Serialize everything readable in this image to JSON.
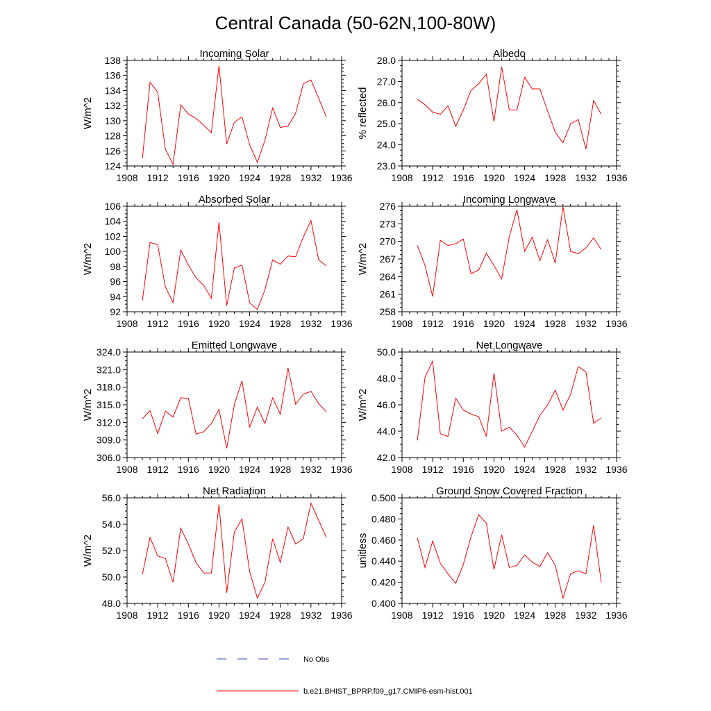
{
  "title": "Central Canada (50-62N,100-80W)",
  "legend": {
    "obs_label": "No Obs",
    "obs_color": "#3344cc",
    "model_label": "b.e21.BHIST_BPRP.f09_g17.CMIP6-esm-hist.001",
    "model_color": "#ff0000"
  },
  "chart_data": [
    {
      "type": "line",
      "title": "Incoming Solar",
      "ylabel": "W/m^2",
      "xlim": [
        1908,
        1936
      ],
      "xticks": [
        "1908",
        "1912",
        "1916",
        "1920",
        "1924",
        "1928",
        "1932",
        "1936"
      ],
      "ylim": [
        124,
        138
      ],
      "yticks": [
        "124",
        "126",
        "128",
        "130",
        "132",
        "134",
        "136",
        "138"
      ],
      "x": [
        1910,
        1911,
        1912,
        1913,
        1914,
        1915,
        1916,
        1917,
        1918,
        1919,
        1920,
        1921,
        1922,
        1923,
        1924,
        1925,
        1926,
        1927,
        1928,
        1929,
        1930,
        1931,
        1932,
        1933,
        1934
      ],
      "series": [
        {
          "name": "b.e21.BHIST_BPRP.f09_g17.CMIP6-esm-hist.001",
          "values": [
            125.0,
            135.1,
            133.8,
            126.2,
            124.2,
            132.1,
            130.9,
            130.3,
            129.4,
            128.4,
            137.3,
            126.9,
            129.8,
            130.5,
            126.8,
            124.5,
            127.4,
            131.7,
            129.1,
            129.3,
            131.0,
            134.9,
            135.4,
            133.0,
            130.5
          ]
        }
      ]
    },
    {
      "type": "line",
      "title": "Albedo",
      "ylabel": "% reflected",
      "xlim": [
        1908,
        1936
      ],
      "xticks": [
        "1908",
        "1912",
        "1916",
        "1920",
        "1924",
        "1928",
        "1932",
        "1936"
      ],
      "ylim": [
        23.0,
        28.0
      ],
      "yticks": [
        "23.0",
        "24.0",
        "25.0",
        "26.0",
        "27.0",
        "28.0"
      ],
      "x": [
        1910,
        1911,
        1912,
        1913,
        1914,
        1915,
        1916,
        1917,
        1918,
        1919,
        1920,
        1921,
        1922,
        1923,
        1924,
        1925,
        1926,
        1927,
        1928,
        1929,
        1930,
        1931,
        1932,
        1933,
        1934
      ],
      "series": [
        {
          "name": "b.e21.BHIST_BPRP.f09_g17.CMIP6-esm-hist.001",
          "values": [
            26.15,
            25.9,
            25.55,
            25.45,
            25.85,
            24.88,
            25.65,
            26.58,
            26.9,
            27.35,
            25.1,
            27.7,
            25.65,
            25.65,
            27.2,
            26.65,
            26.65,
            25.6,
            24.6,
            24.1,
            25.0,
            25.2,
            23.8,
            26.1,
            25.45
          ]
        }
      ]
    },
    {
      "type": "line",
      "title": "Absorbed Solar",
      "ylabel": "W/m^2",
      "xlim": [
        1908,
        1936
      ],
      "xticks": [
        "1908",
        "1912",
        "1916",
        "1920",
        "1924",
        "1928",
        "1932",
        "1936"
      ],
      "ylim": [
        92,
        106
      ],
      "yticks": [
        "92",
        "94",
        "96",
        "98",
        "100",
        "102",
        "104",
        "106"
      ],
      "x": [
        1910,
        1911,
        1912,
        1913,
        1914,
        1915,
        1916,
        1917,
        1918,
        1919,
        1920,
        1921,
        1922,
        1923,
        1924,
        1925,
        1926,
        1927,
        1928,
        1929,
        1930,
        1931,
        1932,
        1933,
        1934
      ],
      "series": [
        {
          "name": "b.e21.BHIST_BPRP.f09_g17.CMIP6-esm-hist.001",
          "values": [
            93.5,
            101.2,
            100.9,
            95.3,
            93.2,
            100.2,
            98.2,
            96.5,
            95.5,
            93.8,
            103.9,
            92.8,
            97.8,
            98.2,
            93.2,
            92.3,
            94.9,
            98.9,
            98.3,
            99.4,
            99.3,
            101.9,
            104.1,
            98.9,
            98.1
          ]
        }
      ]
    },
    {
      "type": "line",
      "title": "Incoming Longwave",
      "ylabel": "W/m^2",
      "xlim": [
        1908,
        1936
      ],
      "xticks": [
        "1908",
        "1912",
        "1916",
        "1920",
        "1924",
        "1928",
        "1932",
        "1936"
      ],
      "ylim": [
        258,
        276
      ],
      "yticks": [
        "258",
        "261",
        "264",
        "267",
        "270",
        "273",
        "276"
      ],
      "x": [
        1910,
        1911,
        1912,
        1913,
        1914,
        1915,
        1916,
        1917,
        1918,
        1919,
        1920,
        1921,
        1922,
        1923,
        1924,
        1925,
        1926,
        1927,
        1928,
        1929,
        1930,
        1931,
        1932,
        1933,
        1934
      ],
      "series": [
        {
          "name": "b.e21.BHIST_BPRP.f09_g17.CMIP6-esm-hist.001",
          "values": [
            269.3,
            265.9,
            260.6,
            270.2,
            269.3,
            269.6,
            270.4,
            264.5,
            265.1,
            268.0,
            265.9,
            263.6,
            270.8,
            275.4,
            268.3,
            270.7,
            266.7,
            270.3,
            266.3,
            275.9,
            268.3,
            267.9,
            268.9,
            270.6,
            268.6
          ]
        }
      ]
    },
    {
      "type": "line",
      "title": "Emitted Longwave",
      "ylabel": "W/m^2",
      "xlim": [
        1908,
        1936
      ],
      "xticks": [
        "1908",
        "1912",
        "1916",
        "1920",
        "1924",
        "1928",
        "1932",
        "1936"
      ],
      "ylim": [
        306.0,
        324.0
      ],
      "yticks": [
        "306.0",
        "309.0",
        "312.0",
        "315.0",
        "318.0",
        "321.0",
        "324.0"
      ],
      "x": [
        1910,
        1911,
        1912,
        1913,
        1914,
        1915,
        1916,
        1917,
        1918,
        1919,
        1920,
        1921,
        1922,
        1923,
        1924,
        1925,
        1926,
        1927,
        1928,
        1929,
        1930,
        1931,
        1932,
        1933,
        1934
      ],
      "series": [
        {
          "name": "b.e21.BHIST_BPRP.f09_g17.CMIP6-esm-hist.001",
          "values": [
            312.6,
            314.0,
            310.1,
            313.9,
            312.9,
            316.2,
            316.1,
            310.0,
            310.4,
            311.8,
            314.2,
            307.6,
            315.0,
            319.1,
            311.2,
            314.6,
            311.8,
            316.2,
            313.4,
            321.3,
            315.1,
            316.8,
            317.3,
            315.2,
            313.8
          ]
        }
      ]
    },
    {
      "type": "line",
      "title": "Net Longwave",
      "ylabel": "W/m^2",
      "xlim": [
        1908,
        1936
      ],
      "xticks": [
        "1908",
        "1912",
        "1916",
        "1920",
        "1924",
        "1928",
        "1932",
        "1936"
      ],
      "ylim": [
        42.0,
        50.0
      ],
      "yticks": [
        "42.0",
        "44.0",
        "46.0",
        "48.0",
        "50.0"
      ],
      "x": [
        1910,
        1911,
        1912,
        1913,
        1914,
        1915,
        1916,
        1917,
        1918,
        1919,
        1920,
        1921,
        1922,
        1923,
        1924,
        1925,
        1926,
        1927,
        1928,
        1929,
        1930,
        1931,
        1932,
        1933,
        1934
      ],
      "series": [
        {
          "name": "b.e21.BHIST_BPRP.f09_g17.CMIP6-esm-hist.001",
          "values": [
            43.3,
            48.1,
            49.3,
            43.8,
            43.6,
            46.5,
            45.6,
            45.3,
            45.1,
            43.6,
            48.4,
            44.0,
            44.3,
            43.7,
            42.8,
            44.0,
            45.2,
            46.0,
            47.1,
            45.6,
            46.8,
            48.9,
            48.5,
            44.6,
            45.0
          ]
        }
      ]
    },
    {
      "type": "line",
      "title": "Net Radiation",
      "ylabel": "W/m^2",
      "xlim": [
        1908,
        1936
      ],
      "xticks": [
        "1908",
        "1912",
        "1916",
        "1920",
        "1924",
        "1928",
        "1932",
        "1936"
      ],
      "ylim": [
        48.0,
        56.0
      ],
      "yticks": [
        "48.0",
        "50.0",
        "52.0",
        "54.0",
        "56.0"
      ],
      "x": [
        1910,
        1911,
        1912,
        1913,
        1914,
        1915,
        1916,
        1917,
        1918,
        1919,
        1920,
        1921,
        1922,
        1923,
        1924,
        1925,
        1926,
        1927,
        1928,
        1929,
        1930,
        1931,
        1932,
        1933,
        1934
      ],
      "series": [
        {
          "name": "b.e21.BHIST_BPRP.f09_g17.CMIP6-esm-hist.001",
          "values": [
            50.2,
            53.0,
            51.6,
            51.4,
            49.6,
            53.7,
            52.5,
            51.1,
            50.3,
            50.3,
            55.5,
            48.8,
            53.4,
            54.4,
            50.4,
            48.4,
            49.6,
            52.9,
            51.1,
            53.8,
            52.5,
            52.9,
            55.6,
            54.3,
            53.0
          ]
        }
      ]
    },
    {
      "type": "line",
      "title": "Ground Snow Covered Fraction",
      "ylabel": "unitless",
      "xlim": [
        1908,
        1936
      ],
      "xticks": [
        "1908",
        "1912",
        "1916",
        "1920",
        "1924",
        "1928",
        "1932",
        "1936"
      ],
      "ylim": [
        0.4,
        0.5
      ],
      "yticks": [
        "0.400",
        "0.420",
        "0.440",
        "0.460",
        "0.480",
        "0.500"
      ],
      "x": [
        1910,
        1911,
        1912,
        1913,
        1914,
        1915,
        1916,
        1917,
        1918,
        1919,
        1920,
        1921,
        1922,
        1923,
        1924,
        1925,
        1926,
        1927,
        1928,
        1929,
        1930,
        1931,
        1932,
        1933,
        1934
      ],
      "series": [
        {
          "name": "b.e21.BHIST_BPRP.f09_g17.CMIP6-esm-hist.001",
          "values": [
            0.462,
            0.434,
            0.459,
            0.438,
            0.428,
            0.419,
            0.437,
            0.463,
            0.484,
            0.476,
            0.432,
            0.465,
            0.434,
            0.436,
            0.446,
            0.439,
            0.435,
            0.448,
            0.436,
            0.405,
            0.428,
            0.431,
            0.428,
            0.474,
            0.42
          ]
        }
      ]
    }
  ]
}
